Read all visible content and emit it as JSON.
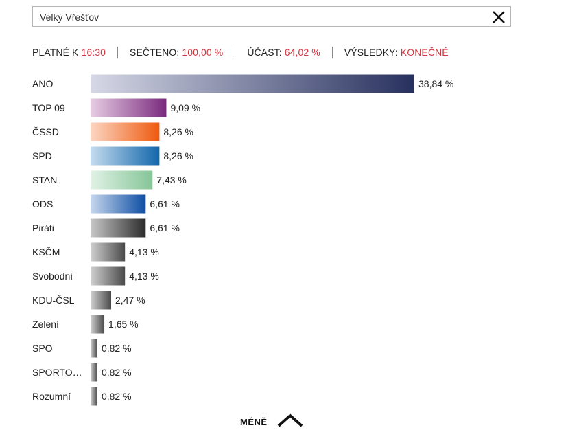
{
  "search": {
    "value": "Velký Vřešťov"
  },
  "status": {
    "valid_label": "PLATNÉ K",
    "valid_time": "16:30",
    "counted_label": "SEČTENO:",
    "counted_value": "100,00 %",
    "turnout_label": "ÚČAST:",
    "turnout_value": "64,02 %",
    "results_label": "VÝSLEDKY:",
    "results_value": "KONEČNÉ"
  },
  "toggle": {
    "label": "MÉNĚ"
  },
  "chart_data": {
    "type": "bar",
    "orientation": "horizontal",
    "categories": [
      "ANO",
      "TOP 09",
      "ČSSD",
      "SPD",
      "STAN",
      "ODS",
      "Piráti",
      "KSČM",
      "Svobodní",
      "KDU-ČSL",
      "Zelení",
      "SPO",
      "SPORTO…",
      "Rozumní"
    ],
    "values": [
      38.84,
      9.09,
      8.26,
      8.26,
      7.43,
      6.61,
      6.61,
      4.13,
      4.13,
      2.47,
      1.65,
      0.82,
      0.82,
      0.82
    ],
    "value_labels": [
      "38,84 %",
      "9,09 %",
      "8,26 %",
      "8,26 %",
      "7,43 %",
      "6,61 %",
      "6,61 %",
      "4,13 %",
      "4,13 %",
      "2,47 %",
      "1,65 %",
      "0,82 %",
      "0,82 %",
      "0,82 %"
    ],
    "colors": [
      [
        "#d6d8e6",
        "#27305e"
      ],
      [
        "#e6cde3",
        "#7a2a7e"
      ],
      [
        "#fcd6c3",
        "#ee5a0e"
      ],
      [
        "#c4dcef",
        "#1266ab"
      ],
      [
        "#e1f2e6",
        "#85c597"
      ],
      [
        "#c6d7ee",
        "#0c4ea3"
      ],
      [
        "#c8c8c8",
        "#2b2b2b"
      ],
      [
        "#d0d0d0",
        "#4a4a4a"
      ],
      [
        "#d0d0d0",
        "#4a4a4a"
      ],
      [
        "#d0d0d0",
        "#4a4a4a"
      ],
      [
        "#d0d0d0",
        "#4a4a4a"
      ],
      [
        "#d0d0d0",
        "#4a4a4a"
      ],
      [
        "#d0d0d0",
        "#4a4a4a"
      ],
      [
        "#d0d0d0",
        "#4a4a4a"
      ]
    ],
    "xlim": [
      0,
      38.84
    ],
    "grid": false,
    "legend": "none"
  }
}
